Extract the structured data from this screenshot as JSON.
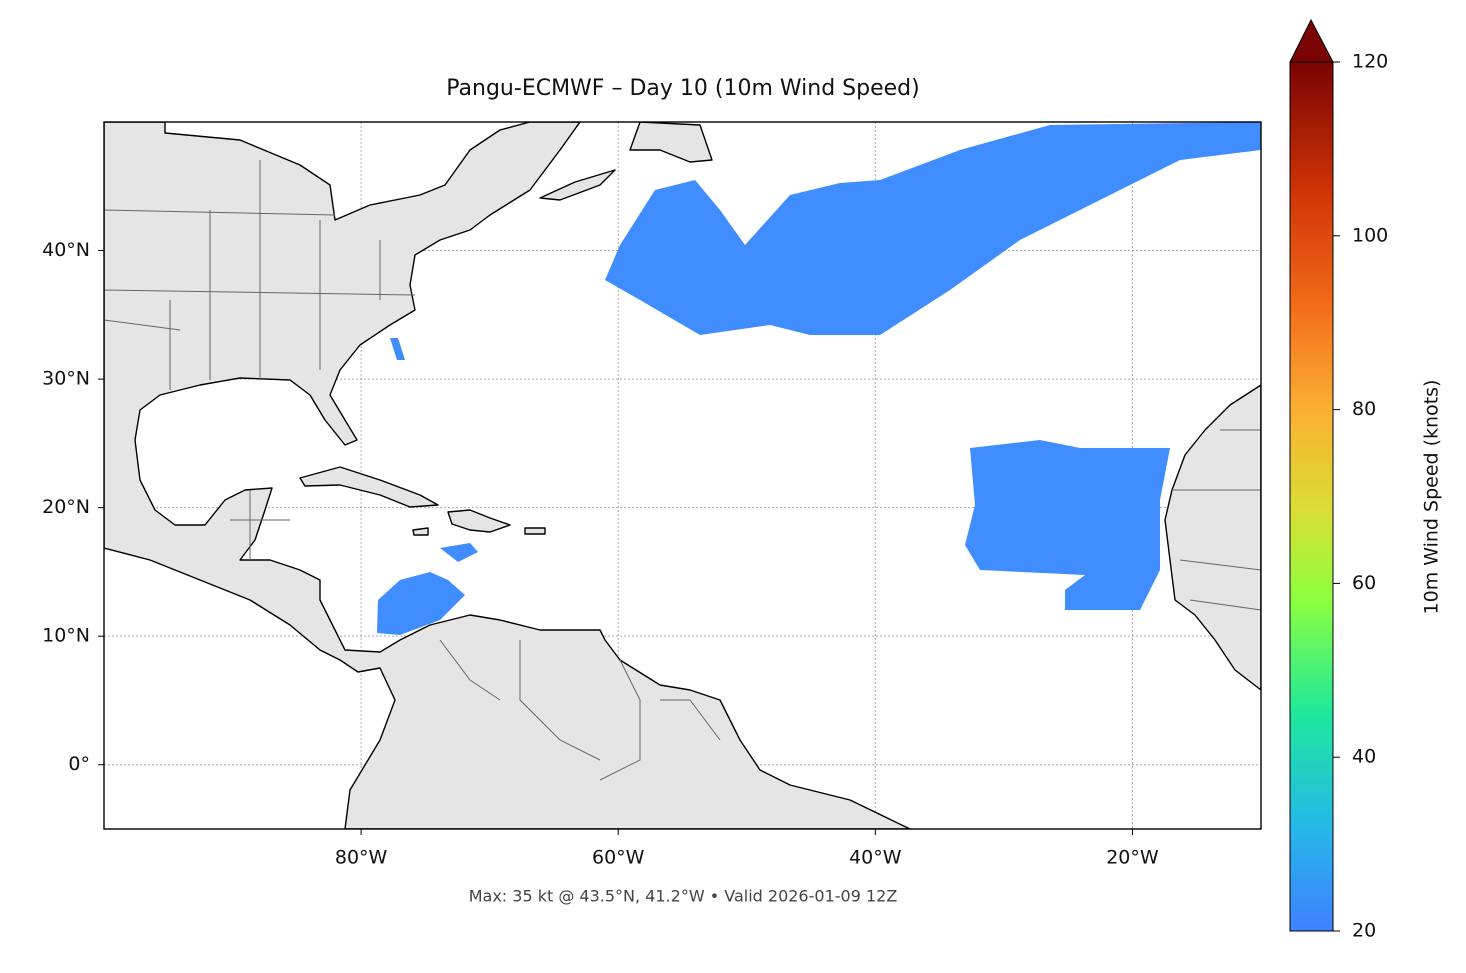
{
  "title": "Pangu-ECMWF – Day 10 (10m Wind Speed)",
  "map": {
    "xlim": [
      -100,
      -10
    ],
    "ylim": [
      -5,
      50
    ],
    "xticks": [
      {
        "value": -80,
        "label": "80°W"
      },
      {
        "value": -60,
        "label": "60°W"
      },
      {
        "value": -40,
        "label": "40°W"
      },
      {
        "value": -20,
        "label": "20°W"
      }
    ],
    "yticks": [
      {
        "value": 0,
        "label": "0°"
      },
      {
        "value": 10,
        "label": "10°N"
      },
      {
        "value": 20,
        "label": "20°N"
      },
      {
        "value": 30,
        "label": "30°N"
      },
      {
        "value": 40,
        "label": "40°N"
      }
    ],
    "grid": true
  },
  "colorbar": {
    "label": "10m Wind Speed (knots)",
    "lim": [
      20,
      120
    ],
    "ticks": [
      20,
      40,
      60,
      80,
      100,
      120
    ]
  },
  "footer": "Max: 35 kt @ 43.5°N, 41.2°W • Valid 2026-01-09 12Z"
}
